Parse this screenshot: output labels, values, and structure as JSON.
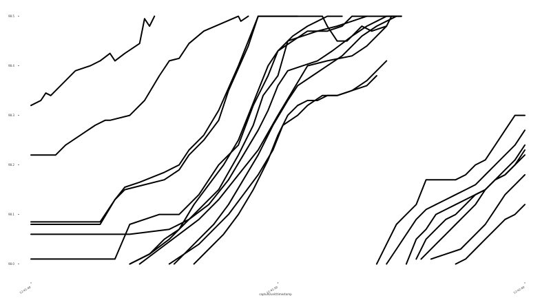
{
  "chart_data": {
    "type": "line",
    "xlabel": "capture/unit/timestamp",
    "ylabel": "",
    "title": "",
    "x_ticks": [
      "12:41:40",
      "12:41:50",
      "12:42:00"
    ],
    "y_ticks": [
      "98.0",
      "98.1",
      "98.2",
      "98.3",
      "98.4",
      "98.5"
    ],
    "xlim": [
      0,
      1
    ],
    "ylim": [
      97.98,
      98.505
    ],
    "grid": false,
    "legend": "none",
    "color": "#000000",
    "series": [
      {
        "x": [
          0.0,
          0.02,
          0.03,
          0.04,
          0.06,
          0.09,
          0.12,
          0.14,
          0.16,
          0.17,
          0.19,
          0.22,
          0.225,
          0.23,
          0.24,
          0.25
        ],
        "y": [
          98.32,
          98.33,
          98.345,
          98.34,
          98.36,
          98.39,
          98.4,
          98.41,
          98.425,
          98.41,
          98.425,
          98.445,
          98.47,
          98.495,
          98.48,
          98.5
        ]
      },
      {
        "x": [
          0.0,
          0.05,
          0.07,
          0.1,
          0.13,
          0.15,
          0.16,
          0.2,
          0.23,
          0.26,
          0.28,
          0.3,
          0.32,
          0.35,
          0.42,
          0.425,
          0.44
        ],
        "y": [
          98.22,
          98.22,
          98.24,
          98.26,
          98.28,
          98.29,
          98.29,
          98.3,
          98.33,
          98.38,
          98.41,
          98.415,
          98.445,
          98.47,
          98.5,
          98.49,
          98.5
        ]
      },
      {
        "x": [
          0.0,
          0.14,
          0.17,
          0.19,
          0.23,
          0.27,
          0.3,
          0.32,
          0.35,
          0.38,
          0.4,
          0.44,
          0.46,
          0.5,
          0.55,
          0.58,
          0.59,
          0.6,
          0.62,
          0.64,
          0.67,
          0.69,
          0.72,
          0.73,
          0.75
        ],
        "y": [
          98.08,
          98.08,
          98.13,
          98.15,
          98.16,
          98.17,
          98.19,
          98.22,
          98.25,
          98.29,
          98.35,
          98.44,
          98.5,
          98.5,
          98.5,
          98.5,
          98.5,
          98.48,
          98.45,
          98.45,
          98.48,
          98.47,
          98.48,
          98.5,
          98.5
        ]
      },
      {
        "x": [
          0.0,
          0.14,
          0.17,
          0.19,
          0.22,
          0.27,
          0.3,
          0.32,
          0.35,
          0.38,
          0.42,
          0.44,
          0.46,
          0.5,
          0.54
        ],
        "y": [
          98.085,
          98.085,
          98.13,
          98.155,
          98.165,
          98.185,
          98.2,
          98.23,
          98.26,
          98.31,
          98.4,
          98.45,
          98.5,
          98.5,
          98.5
        ]
      },
      {
        "x": [
          0.0,
          0.16,
          0.2,
          0.28,
          0.32,
          0.38,
          0.42,
          0.45,
          0.47,
          0.5,
          0.52,
          0.58,
          0.6,
          0.63,
          0.65,
          0.68
        ],
        "y": [
          98.06,
          98.06,
          98.06,
          98.07,
          98.09,
          98.15,
          98.22,
          98.28,
          98.34,
          98.38,
          98.45,
          98.47,
          98.47,
          98.48,
          98.5,
          98.5
        ]
      },
      {
        "x": [
          0.0,
          0.17,
          0.2,
          0.26,
          0.3,
          0.34,
          0.38,
          0.42,
          0.45,
          0.48,
          0.5,
          0.53,
          0.56,
          0.58,
          0.62,
          0.65,
          0.68,
          0.7,
          0.72,
          0.74
        ],
        "y": [
          98.01,
          98.01,
          98.08,
          98.1,
          98.1,
          98.14,
          98.2,
          98.24,
          98.32,
          98.38,
          98.43,
          98.45,
          98.47,
          98.47,
          98.48,
          98.49,
          98.5,
          98.5,
          98.5,
          98.5
        ]
      },
      {
        "x": [
          0.2,
          0.24,
          0.27,
          0.3,
          0.33,
          0.36,
          0.39,
          0.42,
          0.44,
          0.46,
          0.48,
          0.5,
          0.53,
          0.56,
          0.58,
          0.6,
          0.62,
          0.63
        ],
        "y": [
          98.0,
          98.02,
          98.05,
          98.07,
          98.12,
          98.16,
          98.2,
          98.25,
          98.3,
          98.35,
          98.4,
          98.43,
          98.46,
          98.48,
          98.49,
          98.5,
          98.5,
          98.5
        ]
      },
      {
        "x": [
          0.2,
          0.24,
          0.28,
          0.32,
          0.36,
          0.4,
          0.43,
          0.46,
          0.48,
          0.5,
          0.52,
          0.55,
          0.58,
          0.61,
          0.65,
          0.68,
          0.7,
          0.72,
          0.75
        ],
        "y": [
          98.0,
          98.02,
          98.05,
          98.09,
          98.12,
          98.17,
          98.22,
          98.27,
          98.31,
          98.36,
          98.39,
          98.4,
          98.41,
          98.43,
          98.46,
          98.48,
          98.49,
          98.5,
          98.5
        ]
      },
      {
        "x": [
          0.22,
          0.26,
          0.3,
          0.34,
          0.38,
          0.42,
          0.46,
          0.5,
          0.53,
          0.56,
          0.6,
          0.65,
          0.68,
          0.7,
          0.72
        ],
        "y": [
          98.0,
          98.03,
          98.06,
          98.09,
          98.13,
          98.18,
          98.23,
          98.3,
          98.35,
          98.4,
          98.41,
          98.42,
          98.44,
          98.46,
          98.48
        ]
      },
      {
        "x": [
          0.29,
          0.31,
          0.34,
          0.37,
          0.4,
          0.43,
          0.46,
          0.49,
          0.52,
          0.54,
          0.57,
          0.6,
          0.63,
          0.65,
          0.67,
          0.7,
          0.72,
          0.74
        ],
        "y": [
          98.0,
          98.02,
          98.05,
          98.08,
          98.12,
          98.17,
          98.22,
          98.28,
          98.33,
          98.36,
          98.38,
          98.4,
          98.42,
          98.44,
          98.46,
          98.48,
          98.49,
          98.5
        ]
      },
      {
        "x": [
          0.28,
          0.31,
          0.34,
          0.37,
          0.4,
          0.43,
          0.46,
          0.49,
          0.51,
          0.54,
          0.56,
          0.59,
          0.62,
          0.65,
          0.68,
          0.7,
          0.72
        ],
        "y": [
          98.0,
          98.02,
          98.04,
          98.07,
          98.1,
          98.14,
          98.18,
          98.23,
          98.28,
          98.3,
          98.32,
          98.34,
          98.34,
          98.35,
          98.37,
          98.39,
          98.41
        ]
      },
      {
        "x": [
          0.33,
          0.36,
          0.39,
          0.42,
          0.45,
          0.48,
          0.5,
          0.52,
          0.54,
          0.56,
          0.58,
          0.6,
          0.62,
          0.65,
          0.68,
          0.7
        ],
        "y": [
          98.0,
          98.03,
          98.06,
          98.1,
          98.15,
          98.21,
          98.26,
          98.3,
          98.32,
          98.33,
          98.33,
          98.34,
          98.34,
          98.35,
          98.36,
          98.38
        ]
      },
      {
        "x": [
          0.7,
          0.72,
          0.74,
          0.76,
          0.78,
          0.8,
          0.82,
          0.84,
          0.86,
          0.88,
          0.9,
          0.92,
          0.94,
          0.96,
          0.98,
          1.0
        ],
        "y": [
          98.0,
          98.04,
          98.08,
          98.1,
          98.12,
          98.17,
          98.17,
          98.17,
          98.17,
          98.18,
          98.2,
          98.21,
          98.24,
          98.27,
          98.3,
          98.3
        ]
      },
      {
        "x": [
          0.72,
          0.74,
          0.76,
          0.78,
          0.8,
          0.82,
          0.84,
          0.86,
          0.88,
          0.9,
          0.92,
          0.94,
          0.96,
          0.98,
          1.0
        ],
        "y": [
          98.0,
          98.03,
          98.06,
          98.09,
          98.11,
          98.12,
          98.13,
          98.14,
          98.15,
          98.16,
          98.18,
          98.2,
          98.22,
          98.24,
          98.27
        ]
      },
      {
        "x": [
          0.76,
          0.78,
          0.8,
          0.82,
          0.84,
          0.86,
          0.88,
          0.9,
          0.92,
          0.94,
          0.96,
          0.98,
          1.0
        ],
        "y": [
          98.0,
          98.05,
          98.07,
          98.1,
          98.11,
          98.12,
          98.13,
          98.14,
          98.15,
          98.17,
          98.18,
          98.2,
          98.23
        ]
      },
      {
        "x": [
          0.78,
          0.8,
          0.82,
          0.84,
          0.86,
          0.88,
          0.9,
          0.92,
          0.94,
          0.96,
          0.98,
          1.0
        ],
        "y": [
          98.01,
          98.05,
          98.07,
          98.09,
          98.1,
          98.12,
          98.14,
          98.15,
          98.17,
          98.18,
          98.2,
          98.22
        ]
      },
      {
        "x": [
          0.81,
          0.84,
          0.87,
          0.9,
          0.92,
          0.94,
          0.96,
          0.98,
          1.0
        ],
        "y": [
          98.01,
          98.02,
          98.03,
          98.06,
          98.08,
          98.11,
          98.14,
          98.16,
          98.18
        ]
      },
      {
        "x": [
          0.79,
          0.82,
          0.84,
          0.86,
          0.88,
          0.9,
          0.92,
          0.94,
          0.96,
          0.98,
          1.0
        ],
        "y": [
          98.01,
          98.04,
          98.06,
          98.08,
          98.1,
          98.12,
          98.15,
          98.17,
          98.19,
          98.21,
          98.24
        ]
      },
      {
        "x": [
          0.86,
          0.88,
          0.9,
          0.92,
          0.94,
          0.96,
          0.98,
          1.0
        ],
        "y": [
          98.0,
          98.01,
          98.03,
          98.05,
          98.07,
          98.09,
          98.1,
          98.12
        ]
      }
    ]
  }
}
